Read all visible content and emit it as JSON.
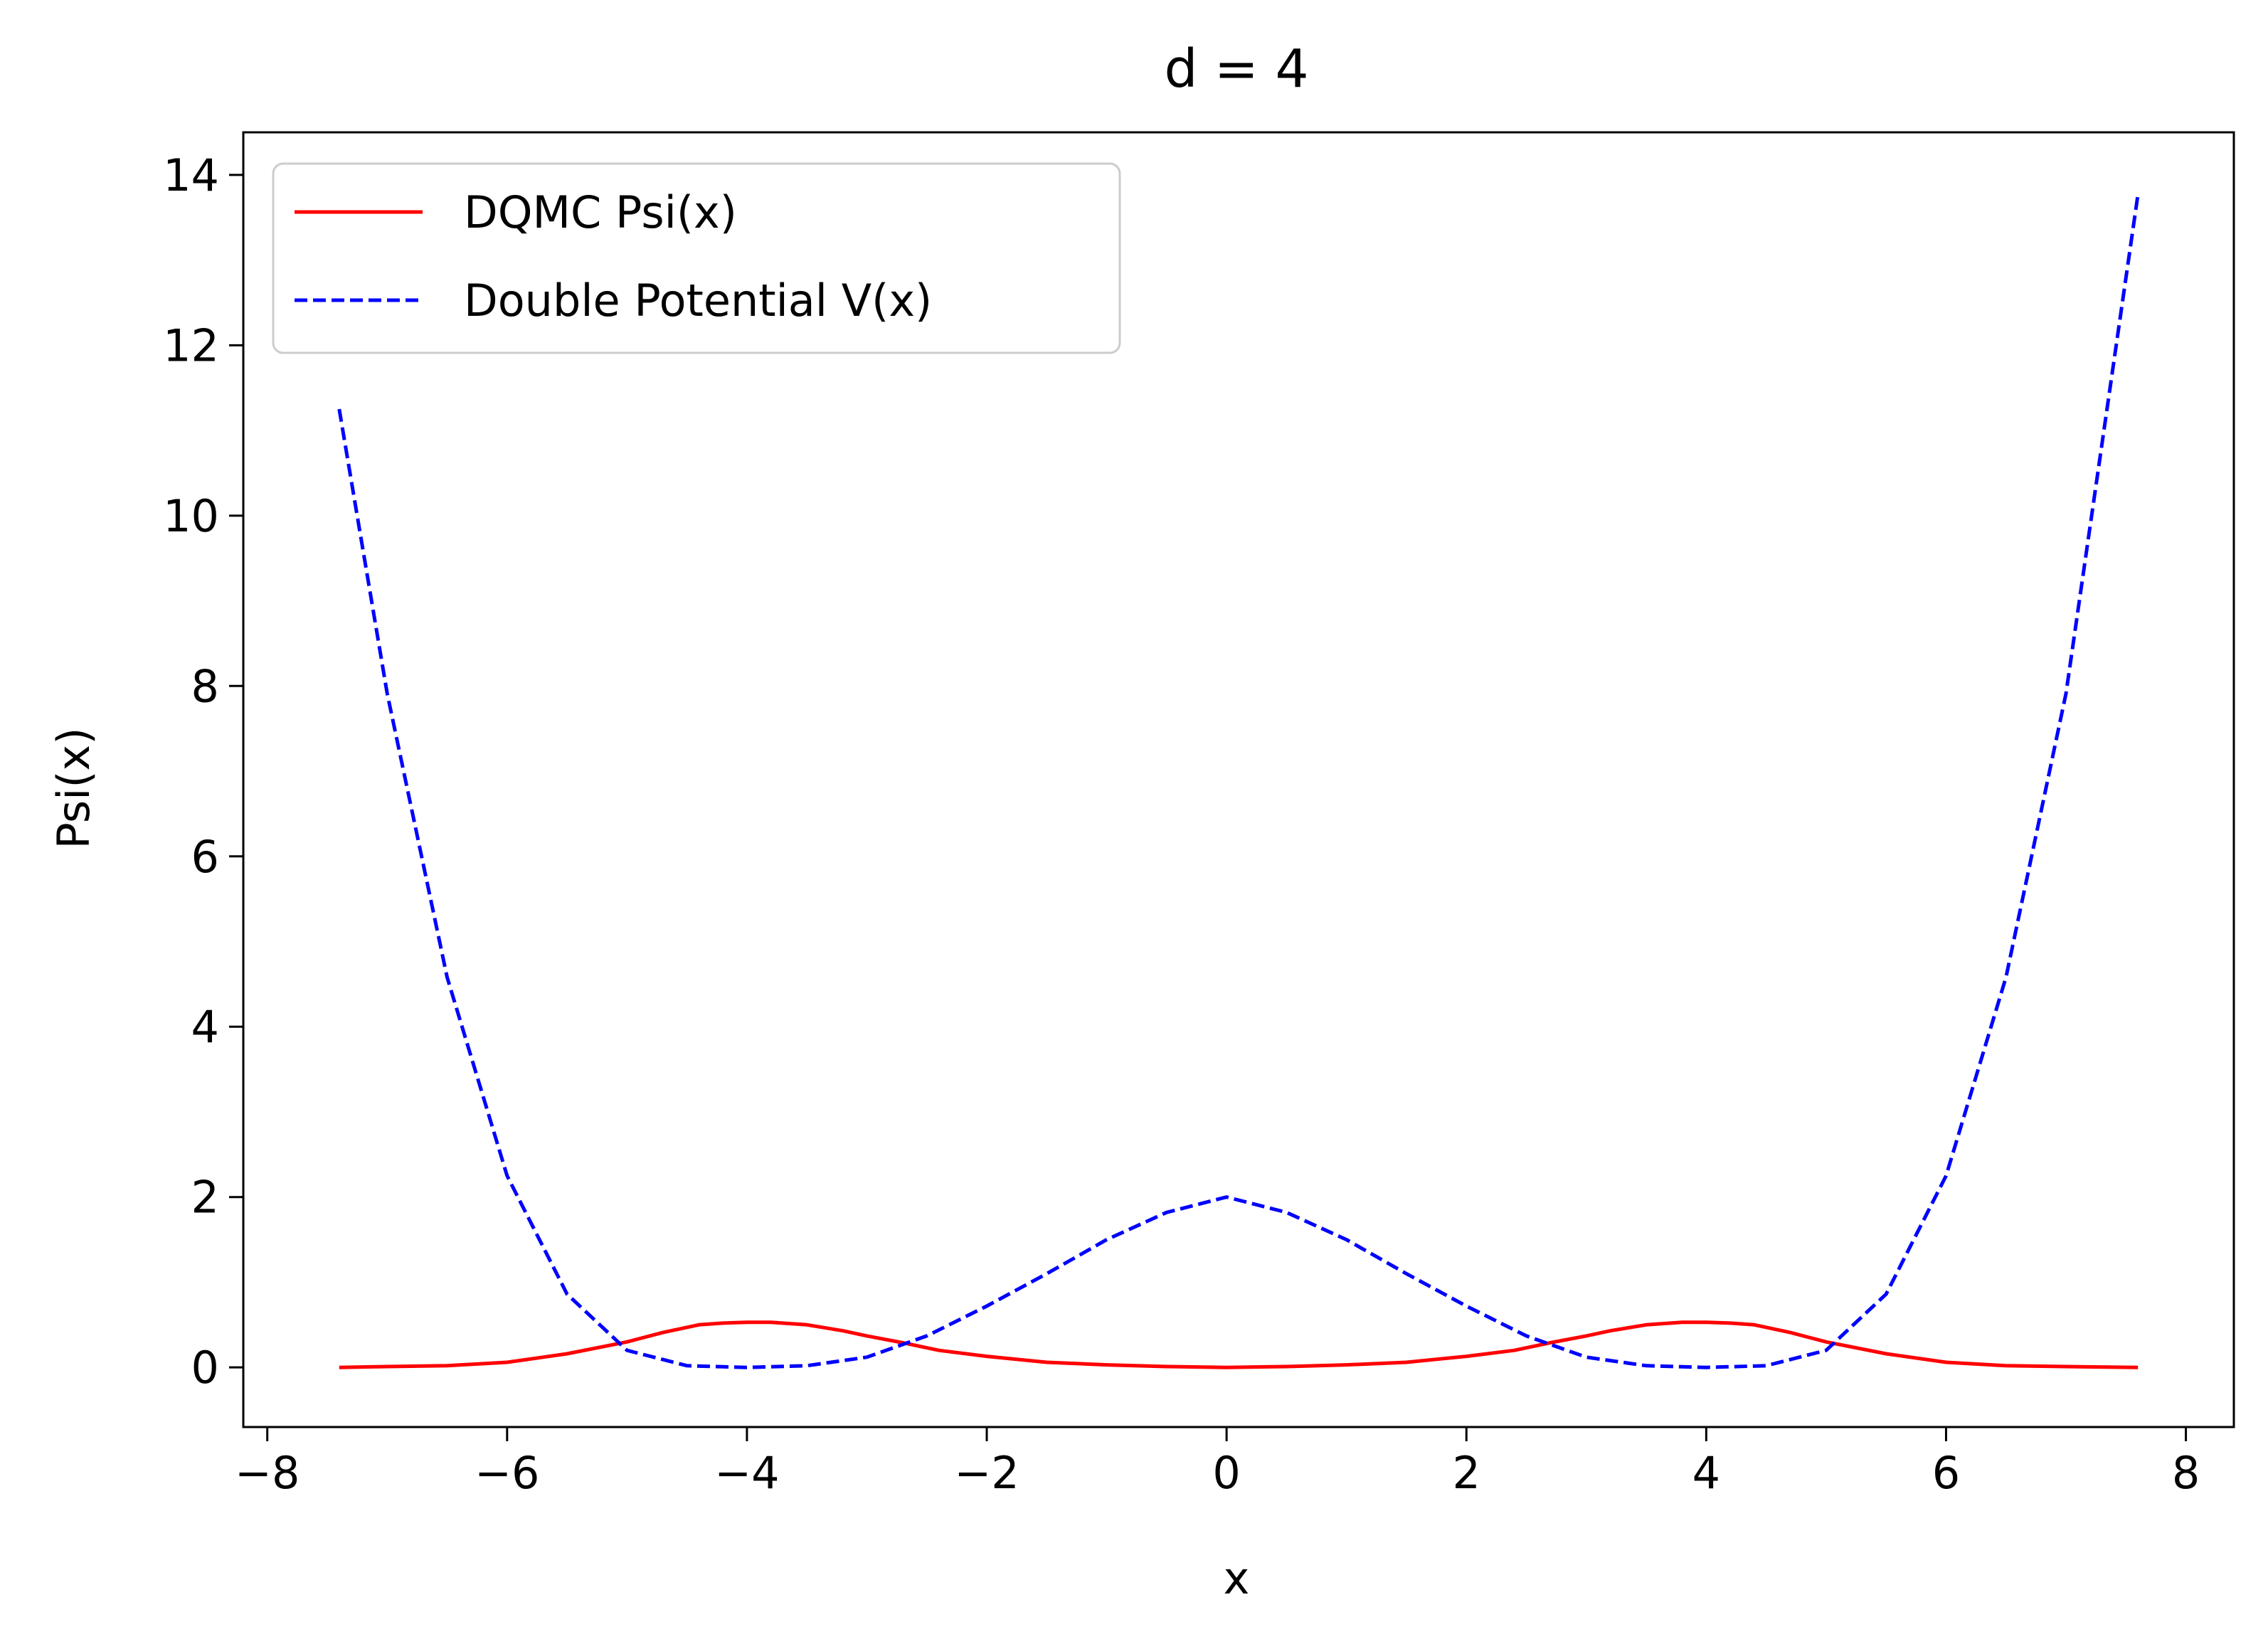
{
  "chart_data": {
    "type": "line",
    "title": "d = 4",
    "xlabel": "x",
    "ylabel": "Psi(x)",
    "xlim": [
      -8.2,
      8.4
    ],
    "ylim": [
      -0.7,
      14.5
    ],
    "x_ticks": [
      -8,
      -6,
      -4,
      -2,
      0,
      2,
      4,
      6,
      8
    ],
    "x_tick_labels": [
      "−8",
      "−6",
      "−4",
      "−2",
      "0",
      "2",
      "4",
      "6",
      "8"
    ],
    "y_ticks": [
      0,
      2,
      4,
      6,
      8,
      10,
      12,
      14
    ],
    "y_tick_labels": [
      "0",
      "2",
      "4",
      "6",
      "8",
      "10",
      "12",
      "14"
    ],
    "grid": false,
    "legend_position": "top-left",
    "series": [
      {
        "name": "DQMC Psi(x)",
        "color": "#ff0000",
        "style": "solid",
        "x": [
          -7.4,
          -7.0,
          -6.5,
          -6.0,
          -5.5,
          -5.0,
          -4.7,
          -4.4,
          -4.2,
          -4.0,
          -3.8,
          -3.5,
          -3.2,
          -3.0,
          -2.7,
          -2.4,
          -2.0,
          -1.5,
          -1.0,
          -0.5,
          0.0,
          0.5,
          1.0,
          1.5,
          2.0,
          2.4,
          2.7,
          3.0,
          3.2,
          3.5,
          3.8,
          4.0,
          4.2,
          4.4,
          4.7,
          5.0,
          5.5,
          6.0,
          6.5,
          7.0,
          7.6
        ],
        "y": [
          0.0,
          0.01,
          0.02,
          0.06,
          0.16,
          0.3,
          0.41,
          0.5,
          0.52,
          0.53,
          0.53,
          0.5,
          0.43,
          0.37,
          0.29,
          0.2,
          0.13,
          0.06,
          0.03,
          0.01,
          0.0,
          0.01,
          0.03,
          0.06,
          0.13,
          0.2,
          0.29,
          0.37,
          0.43,
          0.5,
          0.53,
          0.53,
          0.52,
          0.5,
          0.41,
          0.3,
          0.16,
          0.06,
          0.02,
          0.01,
          0.0
        ]
      },
      {
        "name": "Double Potential V(x)",
        "color": "#0000ff",
        "style": "dashed",
        "x": [
          -7.4,
          -7.0,
          -6.5,
          -6.0,
          -5.5,
          -5.0,
          -4.5,
          -4.0,
          -3.5,
          -3.0,
          -2.5,
          -2.0,
          -1.5,
          -1.0,
          -0.5,
          0.0,
          0.5,
          1.0,
          1.5,
          2.0,
          2.5,
          3.0,
          3.5,
          4.0,
          4.5,
          5.0,
          5.5,
          6.0,
          6.5,
          7.0,
          7.6
        ],
        "y": [
          11.25,
          7.91,
          4.58,
          2.25,
          0.86,
          0.2,
          0.02,
          0.0,
          0.02,
          0.12,
          0.37,
          0.72,
          1.1,
          1.5,
          1.82,
          2.0,
          1.82,
          1.5,
          1.1,
          0.72,
          0.37,
          0.12,
          0.02,
          0.0,
          0.02,
          0.2,
          0.86,
          2.25,
          4.58,
          7.91,
          13.77
        ]
      }
    ]
  }
}
